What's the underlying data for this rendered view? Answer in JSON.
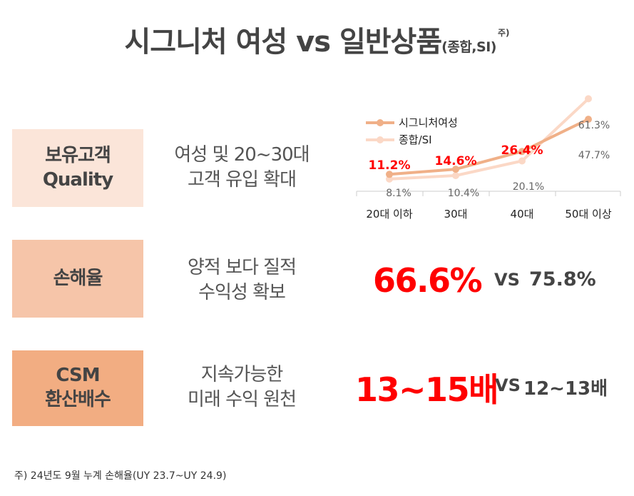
{
  "title": {
    "main": "시그니처 여성 vs 일반상품",
    "sub": "(종합,SI)",
    "note": "주)"
  },
  "rows": [
    {
      "label_lines": [
        "보유고객",
        "Quality"
      ],
      "desc_lines": [
        "여성 및 20~30대",
        "고객 유입 확대"
      ]
    },
    {
      "label_lines": [
        "손해율"
      ],
      "desc_lines": [
        "양적 보다 질적",
        "수익성 확보"
      ],
      "highlight": "66.6%",
      "vs": "VS",
      "compare": "75.8%"
    },
    {
      "label_lines": [
        "CSM",
        "환산배수"
      ],
      "desc_lines": [
        "지속가능한",
        "미래 수익 원천"
      ],
      "highlight": "13~15배",
      "vs": "VS",
      "compare": "12~13배"
    }
  ],
  "colors": {
    "signature": "#f0b088",
    "total": "#fbd8c6",
    "highlight": "#ff0000",
    "box1": "#fbe5d9",
    "box2": "#f6c5a9",
    "box3": "#f2ad82"
  },
  "chart_data": {
    "type": "line",
    "categories": [
      "20대 이하",
      "30대",
      "40대",
      "50대 이상"
    ],
    "series": [
      {
        "name": "시그니처여성",
        "values": [
          11.2,
          14.6,
          26.4,
          47.7
        ],
        "labels": [
          "11.2%",
          "14.6%",
          "26.4%",
          "47.7%"
        ]
      },
      {
        "name": "종합/SI",
        "values": [
          8.1,
          10.4,
          20.1,
          61.3
        ],
        "labels": [
          "8.1%",
          "10.4%",
          "20.1%",
          "61.3%"
        ]
      }
    ],
    "ylim": [
      0,
      70
    ],
    "grid": false,
    "legend": "top-left"
  },
  "footnote": "주) 24년도 9월 누계 손해율(UY 23.7~UY 24.9)"
}
